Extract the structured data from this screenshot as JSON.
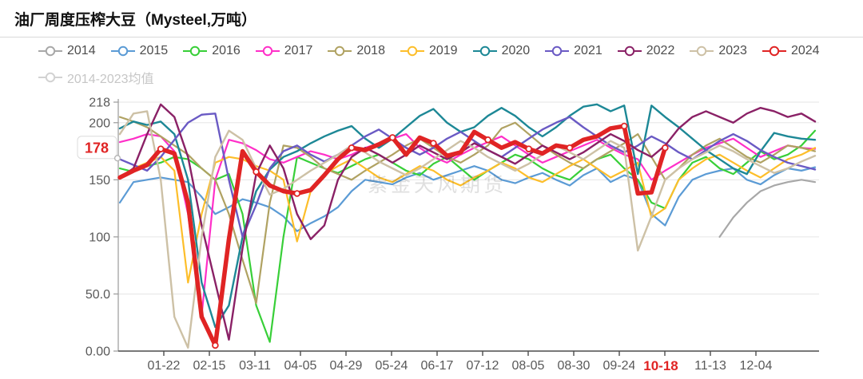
{
  "title": "油厂周度压榨大豆（Mysteel,万吨）",
  "watermark": "紫金天风期货",
  "y_axis": {
    "ticks": [
      {
        "value": 218,
        "label": "218"
      },
      {
        "value": 200,
        "label": "200"
      },
      {
        "value": 150,
        "label": "150"
      },
      {
        "value": 100,
        "label": "100"
      },
      {
        "value": 50,
        "label": "50.0"
      },
      {
        "value": 0,
        "label": "0.00"
      }
    ],
    "highlight": {
      "value": 178,
      "label": "178",
      "color": "#e02424"
    }
  },
  "x_axis": {
    "ticks": [
      "01-22",
      "02-15",
      "03-11",
      "04-05",
      "04-29",
      "05-24",
      "06-17",
      "07-12",
      "08-05",
      "08-30",
      "09-24",
      "10-18",
      "11-13",
      "12-04"
    ],
    "highlight_index": 11,
    "highlight_color": "#e02424"
  },
  "chart_data": {
    "type": "line",
    "title": "油厂周度压榨大豆（Mysteel,万吨）",
    "unit": "万吨",
    "ylim": [
      0,
      218
    ],
    "y_gridlines": [
      218,
      200,
      150,
      100,
      50
    ],
    "x_tick_labels": [
      "01-22",
      "02-15",
      "03-11",
      "04-05",
      "04-29",
      "05-24",
      "06-17",
      "07-12",
      "08-05",
      "08-30",
      "09-24",
      "10-18",
      "11-13",
      "12-04"
    ],
    "latest": {
      "series": "2024",
      "date": "10-18",
      "value": 178
    },
    "legend_position": "top",
    "grid": true,
    "series": [
      {
        "name": "2014",
        "color": "#a8a8a8",
        "width": 2.2,
        "start_index": 44,
        "values": [
          100,
          117,
          130,
          140,
          145,
          148,
          150,
          148
        ]
      },
      {
        "name": "2015",
        "color": "#5b9bd5",
        "width": 2.2,
        "start_index": 0,
        "values": [
          130,
          148,
          150,
          152,
          150,
          148,
          135,
          120,
          126,
          133,
          130,
          126,
          118,
          105,
          112,
          118,
          126,
          140,
          150,
          148,
          146,
          152,
          156,
          150,
          154,
          158,
          162,
          158,
          150,
          147,
          152,
          156,
          150,
          145,
          154,
          160,
          148,
          154,
          150,
          120,
          110,
          135,
          150,
          155,
          158,
          160,
          150,
          146,
          154,
          160,
          158,
          161
        ]
      },
      {
        "name": "2016",
        "color": "#38cf38",
        "width": 2.2,
        "start_index": 0,
        "values": [
          160,
          157,
          162,
          165,
          170,
          168,
          160,
          150,
          155,
          120,
          40,
          8,
          100,
          170,
          165,
          160,
          156,
          162,
          168,
          172,
          165,
          158,
          154,
          164,
          170,
          160,
          150,
          158,
          165,
          172,
          168,
          160,
          154,
          150,
          160,
          168,
          172,
          160,
          150,
          130,
          125,
          150,
          165,
          170,
          160,
          155,
          165,
          175,
          168,
          172,
          180,
          193
        ]
      },
      {
        "name": "2017",
        "color": "#ff2fc8",
        "width": 2.2,
        "start_index": 0,
        "values": [
          183,
          186,
          190,
          188,
          175,
          120,
          31,
          150,
          185,
          182,
          176,
          168,
          165,
          170,
          175,
          172,
          168,
          172,
          178,
          182,
          186,
          190,
          178,
          170,
          165,
          172,
          178,
          183,
          188,
          180,
          172,
          165,
          170,
          175,
          180,
          185,
          178,
          172,
          168,
          150,
          158,
          165,
          172,
          178,
          182,
          186,
          178,
          170,
          175,
          180,
          178,
          177
        ]
      },
      {
        "name": "2018",
        "color": "#b0a262",
        "width": 2.2,
        "start_index": 0,
        "values": [
          205,
          201,
          196,
          188,
          180,
          172,
          160,
          150,
          120,
          80,
          42,
          130,
          180,
          178,
          170,
          160,
          155,
          150,
          158,
          165,
          172,
          180,
          186,
          178,
          170,
          165,
          172,
          180,
          195,
          200,
          190,
          180,
          172,
          165,
          160,
          168,
          175,
          182,
          190,
          170,
          150,
          160,
          172,
          180,
          186,
          178,
          170,
          165,
          172,
          180,
          178,
          175
        ]
      },
      {
        "name": "2019",
        "color": "#fdbe2a",
        "width": 2.2,
        "start_index": 0,
        "values": [
          152,
          160,
          165,
          170,
          158,
          60,
          120,
          165,
          170,
          168,
          162,
          158,
          150,
          96,
          140,
          155,
          162,
          168,
          160,
          152,
          148,
          155,
          162,
          158,
          150,
          145,
          152,
          158,
          165,
          160,
          152,
          148,
          155,
          162,
          168,
          160,
          152,
          158,
          165,
          117,
          125,
          150,
          160,
          168,
          172,
          165,
          158,
          152,
          160,
          168,
          172,
          178
        ]
      },
      {
        "name": "2020",
        "color": "#1d8896",
        "width": 2.4,
        "start_index": 0,
        "values": [
          195,
          201,
          198,
          201,
          190,
          150,
          60,
          21,
          40,
          100,
          140,
          159,
          170,
          175,
          182,
          188,
          193,
          197,
          186,
          178,
          186,
          196,
          206,
          212,
          200,
          192,
          196,
          206,
          213,
          206,
          196,
          188,
          196,
          206,
          214,
          216,
          210,
          215,
          155,
          215,
          205,
          196,
          186,
          176,
          168,
          160,
          155,
          175,
          191,
          188,
          186,
          185
        ]
      },
      {
        "name": "2021",
        "color": "#6a5ac4",
        "width": 2.4,
        "start_index": 0,
        "values": [
          168,
          163,
          158,
          170,
          185,
          200,
          207,
          208,
          150,
          100,
          128,
          160,
          175,
          180,
          172,
          166,
          172,
          180,
          188,
          194,
          186,
          178,
          172,
          178,
          186,
          192,
          184,
          176,
          170,
          178,
          186,
          194,
          200,
          205,
          196,
          188,
          180,
          174,
          180,
          188,
          182,
          174,
          168,
          176,
          184,
          190,
          184,
          176,
          170,
          165,
          162,
          159
        ]
      },
      {
        "name": "2022",
        "color": "#8a2166",
        "width": 2.4,
        "start_index": 0,
        "values": [
          152,
          160,
          190,
          216,
          205,
          170,
          110,
          60,
          10,
          90,
          155,
          180,
          160,
          120,
          98,
          110,
          150,
          170,
          178,
          172,
          165,
          172,
          180,
          174,
          168,
          174,
          182,
          176,
          170,
          164,
          172,
          180,
          174,
          168,
          174,
          182,
          190,
          184,
          176,
          170,
          180,
          195,
          205,
          210,
          205,
          200,
          208,
          213,
          210,
          205,
          208,
          201
        ]
      },
      {
        "name": "2023",
        "color": "#cdc1a6",
        "width": 2.4,
        "start_index": 0,
        "values": [
          190,
          208,
          210,
          150,
          30,
          3,
          100,
          170,
          193,
          185,
          160,
          137,
          142,
          150,
          158,
          165,
          172,
          180,
          174,
          166,
          160,
          154,
          160,
          168,
          176,
          184,
          178,
          170,
          164,
          158,
          164,
          172,
          180,
          174,
          168,
          176,
          184,
          178,
          88,
          118,
          150,
          160,
          168,
          174,
          180,
          175,
          168,
          162,
          156,
          160,
          166,
          171
        ]
      },
      {
        "name": "2024",
        "color": "#e02424",
        "width": 5.5,
        "start_index": 0,
        "marker_at_ticks": true,
        "values": [
          152,
          158,
          163,
          177,
          173,
          130,
          30,
          5,
          98,
          175,
          157,
          145,
          140,
          138,
          141,
          154,
          168,
          178,
          176,
          181,
          187,
          172,
          187,
          182,
          171,
          174,
          192,
          185,
          178,
          183,
          177,
          173,
          180,
          178,
          185,
          188,
          195,
          197,
          138,
          139,
          178
        ]
      },
      {
        "name": "2014-2023均值",
        "color": "#cccccc",
        "width": 2,
        "start_index": 0,
        "visible": false,
        "values": []
      }
    ]
  }
}
